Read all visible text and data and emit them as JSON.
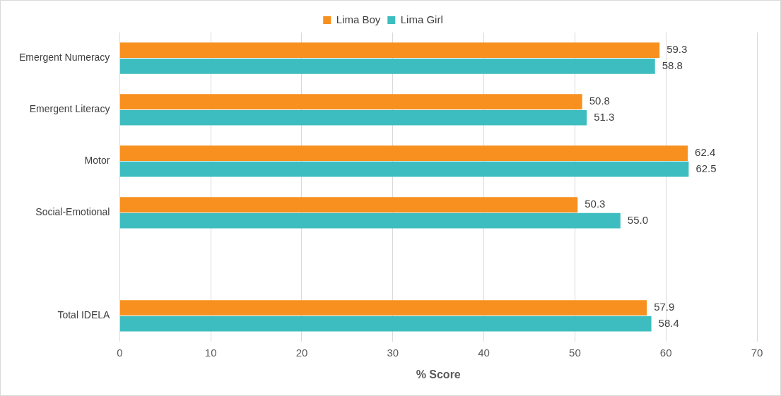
{
  "chart_data": {
    "type": "bar",
    "orientation": "horizontal",
    "xlabel": "% Score",
    "categories": [
      "Emergent Numeracy",
      "Emergent Literacy",
      "Motor",
      "Social-Emotional",
      null,
      "Total IDELA"
    ],
    "series": [
      {
        "name": "Lima Boy",
        "color": "#f7901e",
        "values": [
          59.3,
          50.8,
          62.4,
          50.3,
          null,
          57.9
        ],
        "value_labels": [
          "59.3",
          "50.8",
          "62.4",
          "50.3",
          null,
          "57.9"
        ]
      },
      {
        "name": "Lima Girl",
        "color": "#3dbdbf",
        "values": [
          58.8,
          51.3,
          62.5,
          55.0,
          null,
          58.4
        ],
        "value_labels": [
          "58.8",
          "51.3",
          "62.5",
          "55.0",
          null,
          "58.4"
        ]
      }
    ],
    "xlim": [
      0,
      70
    ],
    "xticks": [
      0,
      10,
      20,
      30,
      40,
      50,
      60,
      70
    ],
    "grid": "x",
    "legend": "top"
  }
}
